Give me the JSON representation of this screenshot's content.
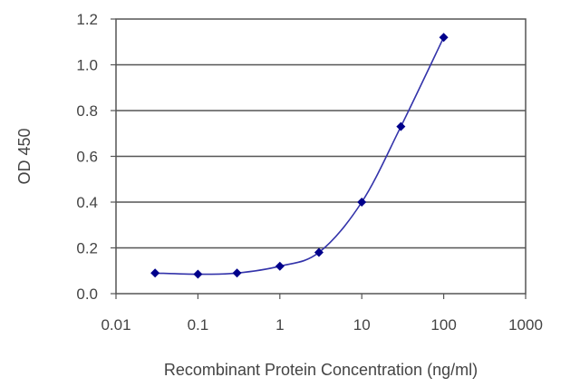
{
  "chart_data": {
    "type": "line",
    "xlabel": "Recombinant Protein Concentration (ng/ml)",
    "ylabel": "OD 450",
    "xscale": "log",
    "xlim": [
      0.01,
      1000
    ],
    "ylim": [
      0,
      1.2
    ],
    "x_ticks": [
      0.01,
      0.1,
      1,
      10,
      100,
      1000
    ],
    "x_tick_labels": [
      "0.01",
      "0.1",
      "1",
      "10",
      "100",
      "1000"
    ],
    "y_ticks": [
      0,
      0.2,
      0.4,
      0.6,
      0.8,
      1.0,
      1.2
    ],
    "y_tick_labels": [
      "0.0",
      "0.2",
      "0.4",
      "0.6",
      "0.8",
      "1.0",
      "1.2"
    ],
    "grid": "horizontal",
    "legend": "none",
    "series": [
      {
        "x": [
          0.03,
          0.1,
          0.3,
          1,
          3,
          10,
          30,
          100
        ],
        "y": [
          0.09,
          0.085,
          0.09,
          0.12,
          0.18,
          0.4,
          0.73,
          1.12
        ],
        "color": "#3333aa",
        "marker": "diamond",
        "marker_color": "#00008b"
      }
    ]
  }
}
